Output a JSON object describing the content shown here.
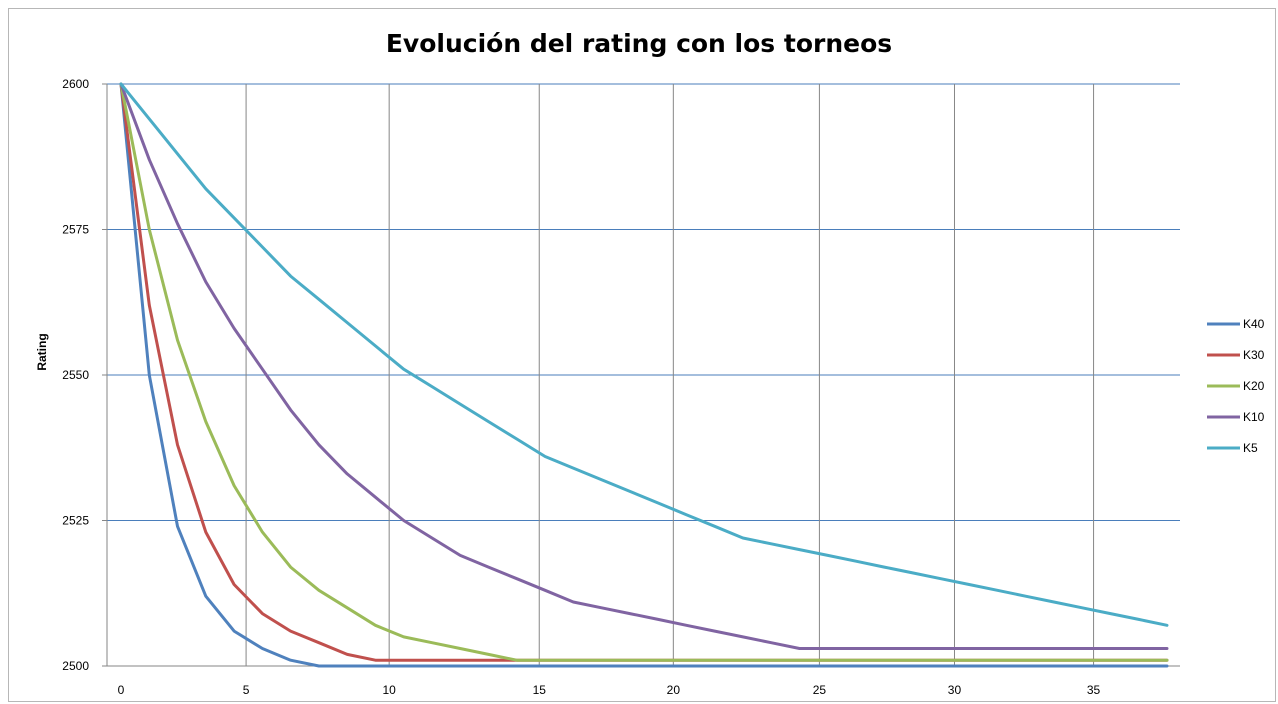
{
  "chart_data": {
    "type": "line",
    "title": "Evolución del rating con los torneos",
    "xlabel": "",
    "ylabel": "Rating",
    "xlim": [
      0,
      37
    ],
    "ylim": [
      2500,
      2600
    ],
    "x_ticks": [
      0,
      5,
      10,
      15,
      20,
      25,
      30,
      35
    ],
    "y_ticks": [
      2500,
      2525,
      2550,
      2575,
      2600
    ],
    "x_tick_labels": [
      "0",
      "5",
      "10",
      "15",
      "20",
      "25",
      "30",
      "35"
    ],
    "y_tick_labels": [
      "2500",
      "2525",
      "2550",
      "2575",
      "2600"
    ],
    "grid": true,
    "legend_position": "right",
    "x": [
      0,
      1,
      2,
      3,
      4,
      5,
      6,
      7,
      8,
      9,
      10,
      11,
      12,
      13,
      14,
      15,
      16,
      17,
      18,
      19,
      20,
      21,
      22,
      23,
      24,
      25,
      26,
      27,
      28,
      29,
      30,
      31,
      32,
      33,
      34,
      35,
      36,
      37
    ],
    "series": [
      {
        "name": "K40",
        "color": "#4f81bd",
        "values": [
          2600,
          2550,
          2524,
          2512,
          2506,
          2503,
          2501,
          2500,
          2500,
          2500,
          2500,
          2500,
          2500,
          2500,
          2500,
          2500,
          2500,
          2500,
          2500,
          2500,
          2500,
          2500,
          2500,
          2500,
          2500,
          2500,
          2500,
          2500,
          2500,
          2500,
          2500,
          2500,
          2500,
          2500,
          2500,
          2500,
          2500,
          2500
        ]
      },
      {
        "name": "K30",
        "color": "#c0504d",
        "values": [
          2600,
          2562,
          2538,
          2523,
          2514,
          2509,
          2506,
          2504,
          2502,
          2501,
          2501,
          2501,
          2501,
          2501,
          2501,
          2501,
          2501,
          2501,
          2501,
          2501,
          2501,
          2501,
          2501,
          2501,
          2501,
          2501,
          2501,
          2501,
          2501,
          2501,
          2501,
          2501,
          2501,
          2501,
          2501,
          2501,
          2501,
          2501
        ]
      },
      {
        "name": "K20",
        "color": "#9bbb59",
        "values": [
          2600,
          2575,
          2556,
          2542,
          2531,
          2523,
          2517,
          2513,
          2510,
          2507,
          2505,
          2504,
          2503,
          2502,
          2501,
          2501,
          2501,
          2501,
          2501,
          2501,
          2501,
          2501,
          2501,
          2501,
          2501,
          2501,
          2501,
          2501,
          2501,
          2501,
          2501,
          2501,
          2501,
          2501,
          2501,
          2501,
          2501,
          2501
        ]
      },
      {
        "name": "K10",
        "color": "#8064a2",
        "values": [
          2600,
          2587,
          2576,
          2566,
          2558,
          2551,
          2544,
          2538,
          2533,
          2529,
          2525,
          2522,
          2519,
          2517,
          2515,
          2513,
          2511,
          2510,
          2509,
          2508,
          2507,
          2506,
          2505,
          2504,
          2503,
          2503,
          2503,
          2503,
          2503,
          2503,
          2503,
          2503,
          2503,
          2503,
          2503,
          2503,
          2503,
          2503
        ]
      },
      {
        "name": "K5",
        "color": "#4bacc6",
        "values": [
          2600,
          2594,
          2588,
          2582,
          2577,
          2572,
          2567,
          2563,
          2559,
          2555,
          2551,
          2548,
          2545,
          2542,
          2539,
          2536,
          2534,
          2532,
          2530,
          2528,
          2526,
          2524,
          2522,
          2521,
          2520,
          2519,
          2518,
          2517,
          2516,
          2515,
          2514,
          2513,
          2512,
          2511,
          2510,
          2509,
          2508,
          2507
        ]
      }
    ]
  }
}
